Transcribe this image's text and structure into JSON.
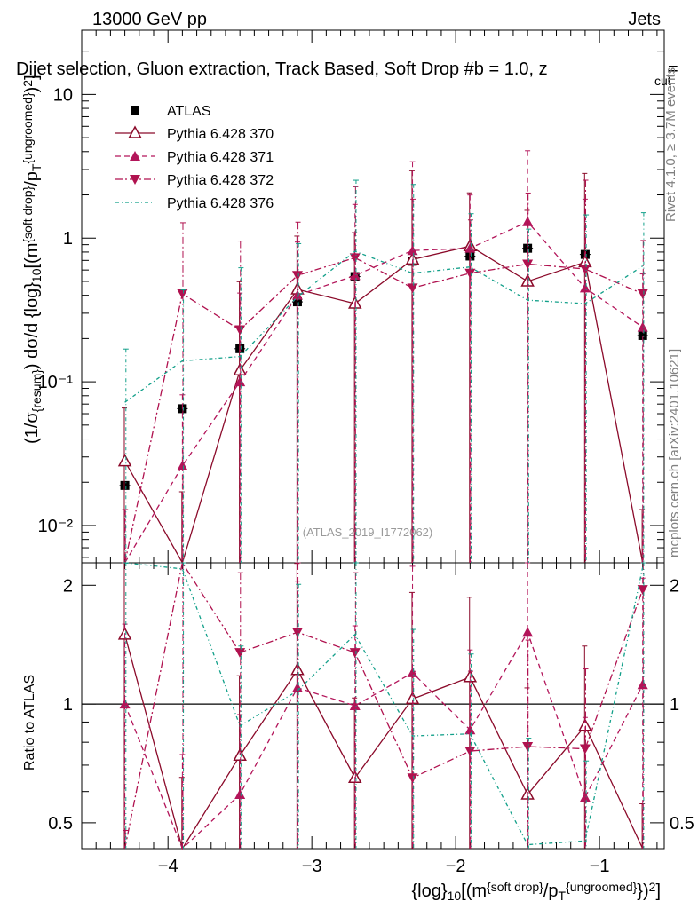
{
  "header": {
    "left_label": "13000 GeV pp",
    "right_label": "Jets",
    "title": "Dijet selection, Gluon extraction, Track Based, Soft Drop #b = 1.0, z",
    "title_sub": "cut",
    "title_tail": " ="
  },
  "side": {
    "rivet": "Rivet 4.1.0, ≥ 3.7M events",
    "mcplots": "mcplots.cern.ch [arXiv:2401.10621]"
  },
  "watermark": "(ATLAS_2019_I1772062)",
  "axes": {
    "ylabel_main": "(1/σ{resum}) dσ/d {log}10[(m{soft drop}/pT{ungroomed})2]",
    "ylabel_ratio": "Ratio to ATLAS",
    "xlabel": "{log}10[(m{soft drop}/pT{ungroomed})2]",
    "main_ticks": [
      {
        "value": 0.01,
        "label": "10⁻²"
      },
      {
        "value": 0.1,
        "label": "10⁻¹"
      },
      {
        "value": 1,
        "label": "1"
      },
      {
        "value": 10,
        "label": "10"
      }
    ],
    "ratio_ticks": [
      {
        "value": 0.5,
        "label": "0.5"
      },
      {
        "value": 1,
        "label": "1"
      },
      {
        "value": 2,
        "label": "2"
      }
    ],
    "x_ticks": [
      {
        "value": -4,
        "label": "−4"
      },
      {
        "value": -3,
        "label": "−3"
      },
      {
        "value": -2,
        "label": "−2"
      },
      {
        "value": -1,
        "label": "−1"
      }
    ]
  },
  "chart_data": {
    "type": "scatter",
    "title": "Dijet selection, Gluon extraction, Track Based, Soft Drop #b = 1.0, z_cut =",
    "xlabel": "{log}10[(m{soft drop}/pT{ungroomed})2]",
    "ylabel": "(1/sigma_resum) dsigma/d {log}10[(m{soft drop}/pT{ungroomed})2]",
    "xlim": [
      -4.6,
      -0.55
    ],
    "ylim": [
      0.0055,
      28
    ],
    "ratio_ylim": [
      0.43,
      2.28
    ],
    "yscale": "log",
    "legend_position": "top-left",
    "x": [
      -4.3,
      -3.9,
      -3.5,
      -3.1,
      -2.7,
      -2.3,
      -1.9,
      -1.5,
      -1.1,
      -0.7
    ],
    "series": [
      {
        "name": "ATLAS",
        "color": "#000000",
        "style": "data",
        "values": [
          0.019,
          0.065,
          0.17,
          0.36,
          0.54,
          0.69,
          0.75,
          0.85,
          0.77,
          0.21
        ]
      },
      {
        "name": "Pythia 6.428 370",
        "color": "#8b0a2a",
        "style": "solid",
        "marker": "triangle-up-open",
        "values": [
          0.028,
          0.0055,
          0.12,
          0.44,
          0.35,
          0.71,
          0.88,
          0.5,
          0.68,
          0.0055
        ],
        "ratio": [
          1.5,
          0.35,
          0.74,
          1.22,
          0.65,
          1.03,
          1.17,
          0.59,
          0.88,
          0.3
        ]
      },
      {
        "name": "Pythia 6.428 371",
        "color": "#b3155a",
        "style": "dashed",
        "marker": "triangle-up",
        "values": [
          0.0055,
          0.026,
          0.1,
          0.4,
          0.55,
          0.82,
          0.85,
          1.3,
          0.45,
          0.24
        ],
        "ratio": [
          1.0,
          0.4,
          0.59,
          1.1,
          0.99,
          1.2,
          0.86,
          1.52,
          0.58,
          1.12
        ]
      },
      {
        "name": "Pythia 6.428 372",
        "color": "#b0124f",
        "style": "dashdot",
        "marker": "triangle-down",
        "values": [
          0.0055,
          0.41,
          0.23,
          0.55,
          0.73,
          0.45,
          0.57,
          0.66,
          0.61,
          0.41
        ],
        "ratio": [
          0.3,
          6.3,
          1.35,
          1.52,
          1.35,
          0.65,
          0.76,
          0.78,
          0.77,
          1.95
        ]
      },
      {
        "name": "Pythia 6.428 376",
        "color": "#13a08a",
        "style": "dashdot2",
        "marker": "none",
        "values": [
          0.072,
          0.14,
          0.15,
          0.39,
          0.81,
          0.57,
          0.63,
          0.37,
          0.35,
          0.64
        ],
        "ratio": [
          3.8,
          2.2,
          0.88,
          1.08,
          1.5,
          0.83,
          0.84,
          0.44,
          0.45,
          2.22
        ]
      }
    ]
  }
}
